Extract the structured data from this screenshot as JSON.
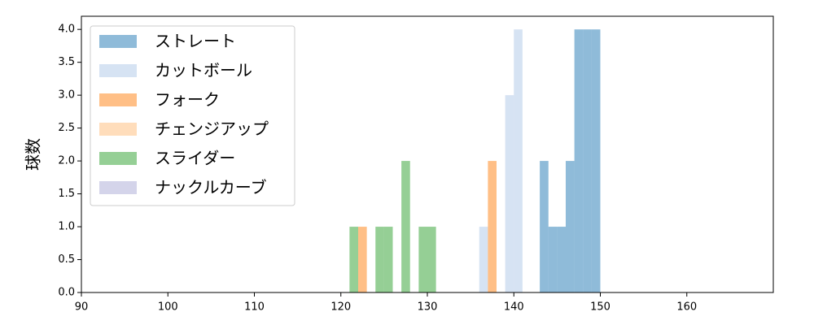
{
  "chart_data": {
    "type": "histogram",
    "ylabel": "球数",
    "xlim": [
      90,
      170
    ],
    "xticks": [
      90,
      100,
      110,
      120,
      130,
      140,
      150,
      160
    ],
    "ylim": [
      0,
      4.2
    ],
    "yticks": [
      {
        "value": 0,
        "label": "0.0"
      },
      {
        "value": 0.5,
        "label": "0.5"
      },
      {
        "value": 1,
        "label": "1.0"
      },
      {
        "value": 1.5,
        "label": "1.5"
      },
      {
        "value": 2,
        "label": "2.0"
      },
      {
        "value": 2.5,
        "label": "2.5"
      },
      {
        "value": 3,
        "label": "3.0"
      },
      {
        "value": 3.5,
        "label": "3.5"
      },
      {
        "value": 4,
        "label": "4.0"
      }
    ],
    "opacity": 0.5,
    "legend": "upper left",
    "series": [
      {
        "name": "ストレート",
        "color": "#1f77b4",
        "bins": [
          143,
          144,
          145,
          146,
          147,
          148,
          149,
          150
        ],
        "counts": [
          2,
          1,
          1,
          2,
          4,
          4,
          4
        ]
      },
      {
        "name": "カットボール",
        "color": "#aec7e8",
        "bins": [
          136,
          137,
          138,
          139,
          140,
          141
        ],
        "counts": [
          1,
          0,
          0,
          3,
          4
        ]
      },
      {
        "name": "フォーク",
        "color": "#ff7f0e",
        "bins": [
          122,
          123,
          124,
          125,
          126,
          127,
          128,
          129,
          130,
          131,
          132,
          133,
          134,
          135,
          136,
          137,
          138
        ],
        "counts": [
          1,
          0,
          0,
          0,
          0,
          0,
          0,
          0,
          0,
          0,
          0,
          0,
          0,
          0,
          0,
          2
        ]
      },
      {
        "name": "チェンジアップ",
        "color": "#ffbb78"
      },
      {
        "name": "スライダー",
        "color": "#2ca02c",
        "bins": [
          121,
          122,
          123,
          124,
          125,
          126,
          127,
          128,
          129,
          130,
          131
        ],
        "counts": [
          1,
          0,
          0,
          1,
          1,
          0,
          2,
          0,
          1,
          1
        ]
      },
      {
        "name": "ナックルカーブ",
        "color": "#aaaad5"
      }
    ]
  }
}
